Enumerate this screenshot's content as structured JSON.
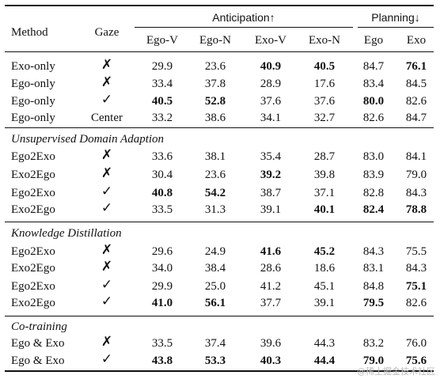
{
  "headers": {
    "method": "Method",
    "gaze": "Gaze",
    "anticipation": "Anticipation↑",
    "planning": "Planning↓",
    "sub": [
      "Ego-V",
      "Ego-N",
      "Exo-V",
      "Exo-N",
      "Ego",
      "Exo"
    ]
  },
  "sections": [
    {
      "title": "",
      "rows": [
        {
          "method": "Exo-only",
          "gaze": "✗",
          "values": [
            "29.9",
            "23.6",
            "40.9",
            "40.5",
            "84.7",
            "76.1"
          ],
          "bold": [
            false,
            false,
            true,
            true,
            false,
            true
          ]
        },
        {
          "method": "Ego-only",
          "gaze": "✗",
          "values": [
            "33.4",
            "37.8",
            "28.9",
            "17.6",
            "83.4",
            "84.5"
          ],
          "bold": [
            false,
            false,
            false,
            false,
            false,
            false
          ]
        },
        {
          "method": "Ego-only",
          "gaze": "✓",
          "values": [
            "40.5",
            "52.8",
            "37.6",
            "37.6",
            "80.0",
            "82.6"
          ],
          "bold": [
            true,
            true,
            false,
            false,
            true,
            false
          ]
        },
        {
          "method": "Ego-only",
          "gaze": "Center",
          "values": [
            "33.2",
            "38.6",
            "34.1",
            "32.7",
            "82.6",
            "84.7"
          ],
          "bold": [
            false,
            false,
            false,
            false,
            false,
            false
          ]
        }
      ]
    },
    {
      "title": "Unsupervised Domain Adaption",
      "rows": [
        {
          "method": "Ego2Exo",
          "gaze": "✗",
          "values": [
            "33.6",
            "38.1",
            "35.4",
            "28.7",
            "83.0",
            "84.1"
          ],
          "bold": [
            false,
            false,
            false,
            false,
            false,
            false
          ]
        },
        {
          "method": "Exo2Ego",
          "gaze": "✗",
          "values": [
            "30.4",
            "23.6",
            "39.2",
            "39.8",
            "83.9",
            "79.0"
          ],
          "bold": [
            false,
            false,
            true,
            false,
            false,
            false
          ]
        },
        {
          "method": "Ego2Exo",
          "gaze": "✓",
          "values": [
            "40.8",
            "54.2",
            "38.7",
            "37.1",
            "82.8",
            "84.3"
          ],
          "bold": [
            true,
            true,
            false,
            false,
            false,
            false
          ]
        },
        {
          "method": "Exo2Ego",
          "gaze": "✓",
          "values": [
            "33.5",
            "31.3",
            "39.1",
            "40.1",
            "82.4",
            "78.8"
          ],
          "bold": [
            false,
            false,
            false,
            true,
            true,
            true
          ]
        }
      ]
    },
    {
      "title": "Knowledge Distillation",
      "rows": [
        {
          "method": "Ego2Exo",
          "gaze": "✗",
          "values": [
            "29.6",
            "24.9",
            "41.6",
            "45.2",
            "84.3",
            "75.5"
          ],
          "bold": [
            false,
            false,
            true,
            true,
            false,
            false
          ]
        },
        {
          "method": "Exo2Ego",
          "gaze": "✗",
          "values": [
            "34.0",
            "38.4",
            "28.6",
            "18.6",
            "83.1",
            "84.3"
          ],
          "bold": [
            false,
            false,
            false,
            false,
            false,
            false
          ]
        },
        {
          "method": "Ego2Exo",
          "gaze": "✓",
          "values": [
            "29.9",
            "25.0",
            "41.2",
            "45.1",
            "84.8",
            "75.1"
          ],
          "bold": [
            false,
            false,
            false,
            false,
            false,
            true
          ]
        },
        {
          "method": "Exo2Ego",
          "gaze": "✓",
          "values": [
            "41.0",
            "56.1",
            "37.7",
            "39.1",
            "79.5",
            "82.6"
          ],
          "bold": [
            true,
            true,
            false,
            false,
            true,
            false
          ]
        }
      ]
    },
    {
      "title": "Co-training",
      "rows": [
        {
          "method": "Ego & Exo",
          "gaze": "✗",
          "values": [
            "33.5",
            "37.4",
            "39.6",
            "44.3",
            "83.2",
            "76.0"
          ],
          "bold": [
            false,
            false,
            false,
            false,
            false,
            false
          ]
        },
        {
          "method": "Ego & Exo",
          "gaze": "✓",
          "values": [
            "43.8",
            "53.3",
            "40.3",
            "44.4",
            "79.0",
            "75.6"
          ],
          "bold": [
            true,
            true,
            true,
            true,
            true,
            true
          ]
        }
      ]
    }
  ],
  "watermark": "@稀土掘金技术社区"
}
